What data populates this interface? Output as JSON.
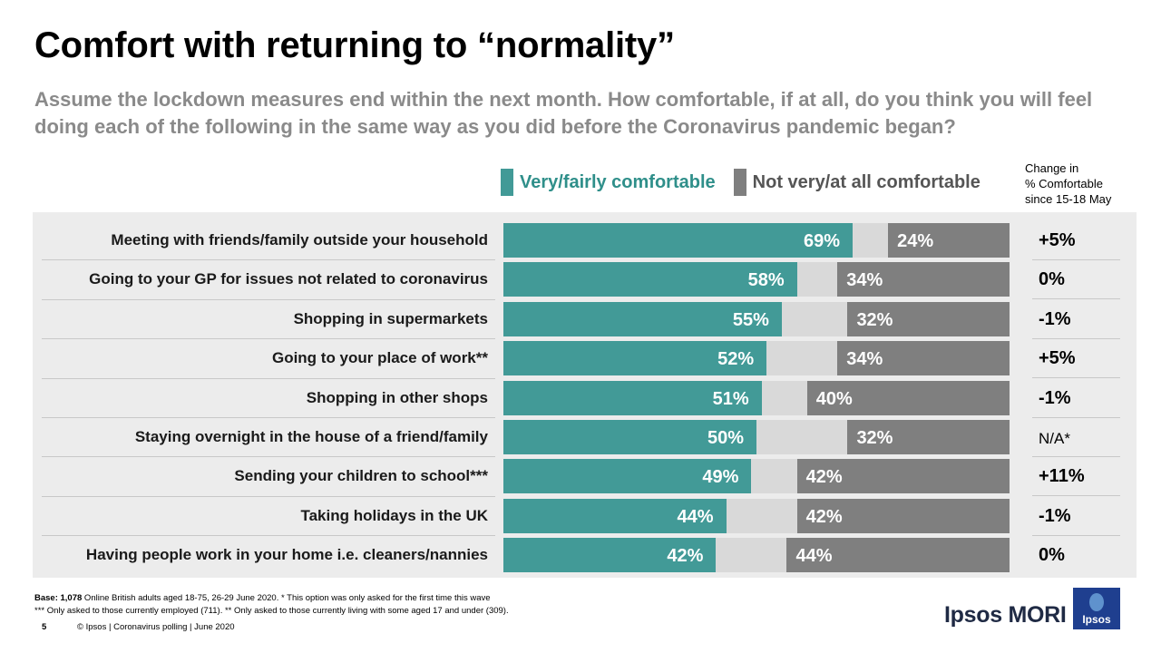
{
  "title": "Comfort with returning to “normality”",
  "subtitle": "Assume the lockdown measures end within the next month. How comfortable, if at all, do you think you will feel doing each of the following in the same way as you did before the Coronavirus pandemic began?",
  "legend": {
    "comfortable": "Very/fairly  comfortable",
    "not_comfortable": "Not very/at all comfortable"
  },
  "change_header": {
    "line1": "Change in",
    "line2": "% Comfortable",
    "line3": "since 15-18 May"
  },
  "colors": {
    "comfortable": "#429a97",
    "not_comfortable": "#7f7f7f",
    "neither": "#d9d9d9"
  },
  "chart_data": {
    "type": "bar",
    "orientation": "horizontal",
    "stacked": true,
    "categories": [
      "Meeting with friends/family outside your household",
      "Going to your GP for issues not related to coronavirus",
      "Shopping in supermarkets",
      "Going to your place of work**",
      "Shopping in other shops",
      "Staying overnight in the house of a friend/family",
      "Sending your children to school***",
      "Taking holidays in the UK",
      "Having people work in your home i.e. cleaners/nannies"
    ],
    "series": [
      {
        "name": "Very/fairly  comfortable",
        "values": [
          69,
          58,
          55,
          52,
          51,
          50,
          49,
          44,
          42
        ]
      },
      {
        "name": "Not very/at all comfortable",
        "values": [
          24,
          34,
          32,
          34,
          40,
          32,
          42,
          42,
          44
        ]
      }
    ],
    "value_labels": {
      "comfortable": [
        "69%",
        "58%",
        "55%",
        "52%",
        "51%",
        "50%",
        "49%",
        "44%",
        "42%"
      ],
      "not_comfortable": [
        "24%",
        "34%",
        "32%",
        "34%",
        "40%",
        "32%",
        "42%",
        "42%",
        "44%"
      ]
    },
    "change": [
      "+5%",
      "0%",
      "-1%",
      "+5%",
      "-1%",
      "N/A*",
      "+11%",
      "-1%",
      "0%"
    ],
    "xlim": [
      0,
      100
    ],
    "legend_position": "top"
  },
  "footer": {
    "base_bold": "Base: 1,078",
    "base_rest": " Online British adults aged 18-75, 26-29 June 2020. * This option was only asked for the first time this wave",
    "note": "*** Only asked to those currently employed (711). ** Only asked to those currently living with some aged 17 and under (309).",
    "page_number": "5",
    "copyright": "© Ipsos | Coronavirus polling | June 2020"
  },
  "logo": {
    "wordmark": "Ipsos MORI",
    "badge": "Ipsos"
  }
}
